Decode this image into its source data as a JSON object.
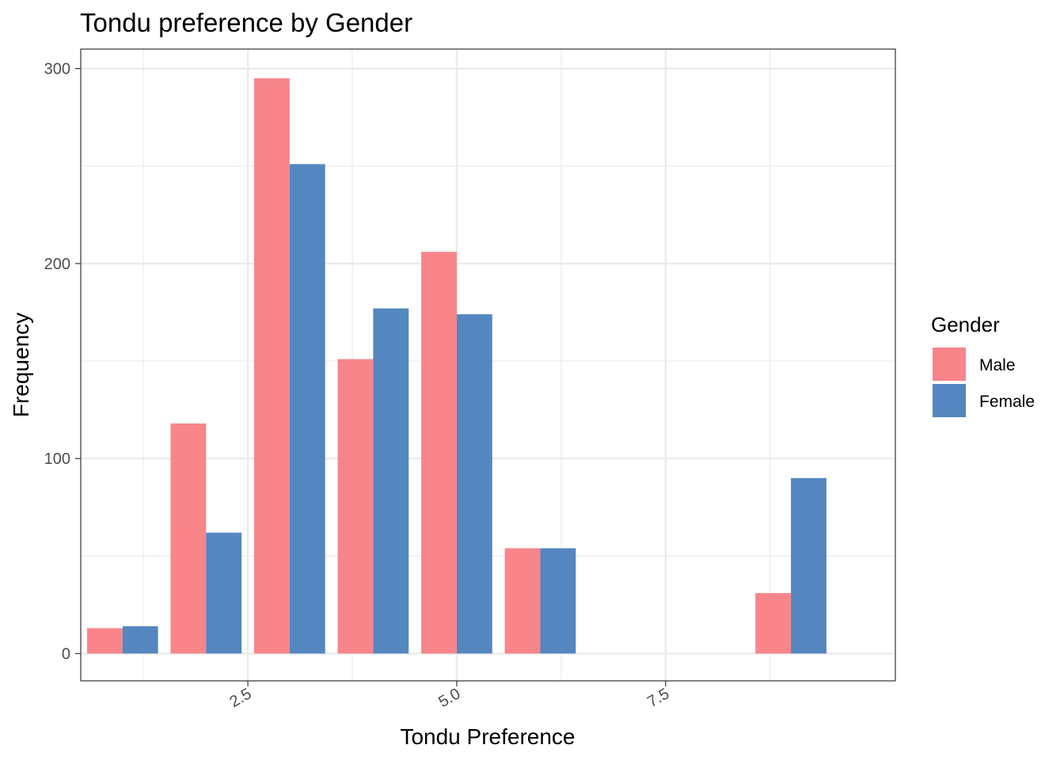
{
  "chart_data": {
    "type": "bar",
    "title": "Tondu preference by Gender",
    "xlabel": "Tondu Preference",
    "ylabel": "Frequency",
    "x": [
      1,
      2,
      3,
      4,
      5,
      6,
      9
    ],
    "series": [
      {
        "name": "Male",
        "color": "#F8858A",
        "values": [
          13,
          118,
          295,
          151,
          206,
          54,
          31
        ]
      },
      {
        "name": "Female",
        "color": "#5487C0",
        "values": [
          14,
          62,
          251,
          177,
          174,
          54,
          90
        ]
      }
    ],
    "xlim": [
      0.5,
      10.25
    ],
    "ylim": [
      -14,
      310
    ],
    "x_ticks": [
      2.5,
      5.0,
      7.5
    ],
    "x_tick_labels": [
      "2.5",
      "5.0",
      "7.5"
    ],
    "y_ticks": [
      0,
      100,
      200,
      300
    ],
    "y_tick_labels": [
      "0",
      "100",
      "200",
      "300"
    ],
    "grid": true,
    "legend": {
      "title": "Gender",
      "position": "right"
    }
  }
}
